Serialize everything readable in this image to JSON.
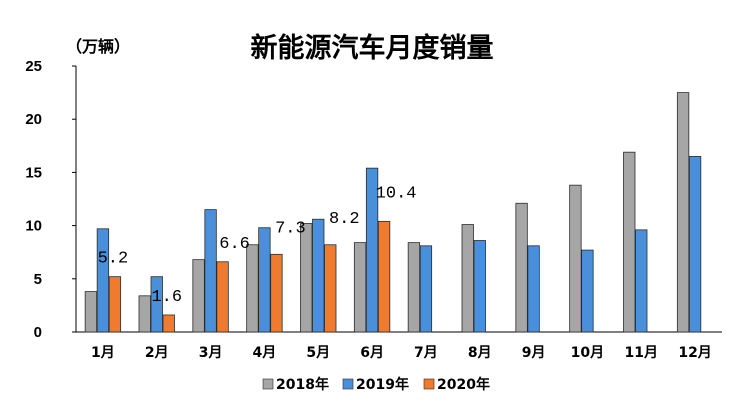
{
  "chart_data": {
    "type": "bar",
    "title": "新能源汽车月度销量",
    "unit_label": "（万辆）",
    "categories": [
      "1月",
      "2月",
      "3月",
      "4月",
      "5月",
      "6月",
      "7月",
      "8月",
      "9月",
      "10月",
      "11月",
      "12月"
    ],
    "series": [
      {
        "name": "2018年",
        "color": "#a6a6a6",
        "values": [
          3.8,
          3.4,
          6.8,
          8.2,
          10.2,
          8.4,
          8.4,
          10.1,
          12.1,
          13.8,
          16.9,
          22.5
        ]
      },
      {
        "name": "2019年",
        "color": "#4a8fd9",
        "values": [
          9.7,
          5.2,
          11.5,
          9.8,
          10.6,
          15.4,
          8.1,
          8.6,
          8.1,
          7.7,
          9.6,
          16.5
        ]
      },
      {
        "name": "2020年",
        "color": "#f07a2e",
        "values": [
          5.2,
          1.6,
          6.6,
          7.3,
          8.2,
          10.4,
          null,
          null,
          null,
          null,
          null,
          null
        ]
      }
    ],
    "data_labels": [
      "5.2",
      "1.6",
      "6.6",
      "7.3",
      "8.2",
      "10.4"
    ],
    "yticks": [
      "0",
      "5",
      "10",
      "15",
      "20",
      "25"
    ],
    "ylim": [
      0,
      25
    ],
    "grid": false,
    "legend_position": "bottom"
  }
}
